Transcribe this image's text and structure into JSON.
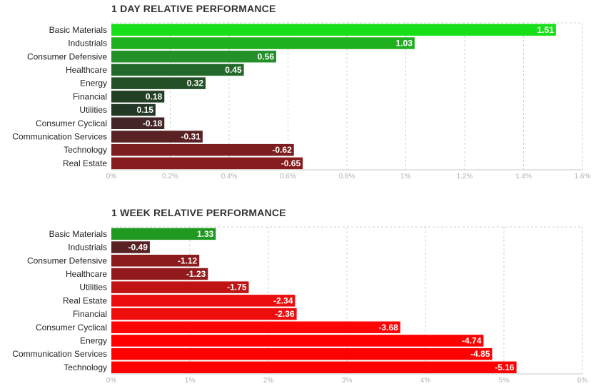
{
  "chart_data": [
    {
      "type": "bar",
      "orientation": "horizontal",
      "title": "1 DAY RELATIVE PERFORMANCE",
      "categories": [
        "Basic Materials",
        "Industrials",
        "Consumer Defensive",
        "Healthcare",
        "Energy",
        "Financial",
        "Utilities",
        "Consumer Cyclical",
        "Communication Services",
        "Technology",
        "Real Estate"
      ],
      "values": [
        1.51,
        1.03,
        0.56,
        0.45,
        0.32,
        0.18,
        0.15,
        -0.18,
        -0.31,
        -0.62,
        -0.65
      ],
      "value_labels": [
        "1.51",
        "1.03",
        "0.56",
        "0.45",
        "0.32",
        "0.18",
        "0.15",
        "-0.18",
        "-0.31",
        "-0.62",
        "-0.65"
      ],
      "bar_colors": [
        "#18e018",
        "#1fb01f",
        "#23902a",
        "#236a2a",
        "#235027",
        "#233f24",
        "#243826",
        "#452628",
        "#5a2225",
        "#7c1e20",
        "#861c1e"
      ],
      "xlim": [
        0,
        1.6
      ],
      "ticks": [
        0,
        0.2,
        0.4,
        0.6,
        0.8,
        1,
        1.2,
        1.4,
        1.6
      ],
      "tick_labels": [
        "0%",
        "0.2%",
        "0.4%",
        "0.6%",
        "0.8%",
        "1%",
        "1.2%",
        "1.4%",
        "1.6%"
      ],
      "grid": true,
      "xlabel": "",
      "ylabel": ""
    },
    {
      "type": "bar",
      "orientation": "horizontal",
      "title": "1 WEEK RELATIVE PERFORMANCE",
      "categories": [
        "Basic Materials",
        "Industrials",
        "Consumer Defensive",
        "Healthcare",
        "Utilities",
        "Real Estate",
        "Financial",
        "Consumer Cyclical",
        "Energy",
        "Communication Services",
        "Technology"
      ],
      "values": [
        1.33,
        -0.49,
        -1.12,
        -1.23,
        -1.75,
        -2.34,
        -2.36,
        -3.68,
        -4.74,
        -4.85,
        -5.16
      ],
      "value_labels": [
        "1.33",
        "-0.49",
        "-1.12",
        "-1.23",
        "-1.75",
        "-2.34",
        "-2.36",
        "-3.68",
        "-4.74",
        "-4.85",
        "-5.16"
      ],
      "bar_colors": [
        "#1f991f",
        "#5a2225",
        "#8b1b1d",
        "#931a1c",
        "#c01414",
        "#ec0e0e",
        "#ee0e0e",
        "#fd0505",
        "#ff0000",
        "#ff0000",
        "#ff0000"
      ],
      "xlim": [
        0,
        6
      ],
      "ticks": [
        0,
        1,
        2,
        3,
        4,
        5,
        6
      ],
      "tick_labels": [
        "0%",
        "1%",
        "2%",
        "3%",
        "4%",
        "5%",
        "6%"
      ],
      "grid": true,
      "xlabel": "",
      "ylabel": ""
    }
  ]
}
